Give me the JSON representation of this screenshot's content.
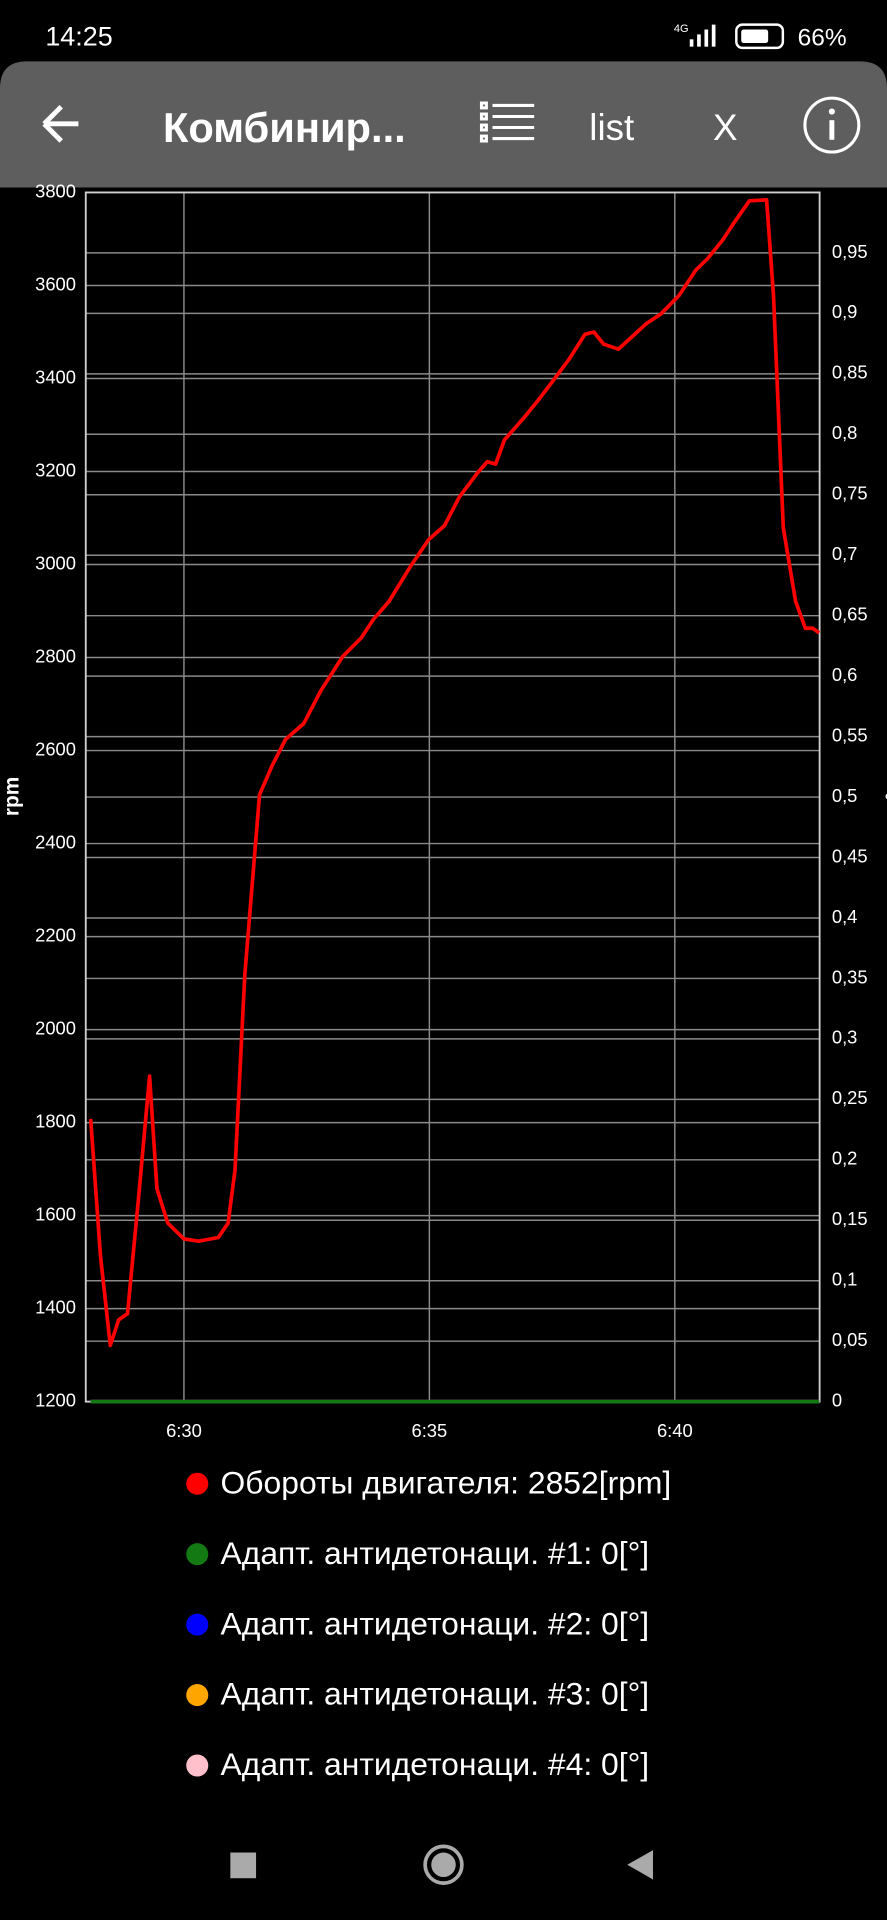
{
  "status_bar": {
    "time": "14:25",
    "network": "4G",
    "battery": "66%"
  },
  "toolbar": {
    "title": "Комбинир...",
    "list_button": "list",
    "close_button": "X"
  },
  "chart_data": {
    "type": "line",
    "y_label": "rpm",
    "y2_label": "°",
    "x": [
      388.1,
      388.3,
      388.5,
      388.67,
      388.85,
      389.07,
      389.3,
      389.45,
      389.67,
      390.0,
      390.3,
      390.7,
      390.9,
      391.04,
      391.24,
      391.54,
      391.79,
      392.07,
      392.44,
      392.79,
      393.24,
      393.61,
      393.86,
      394.18,
      394.61,
      394.98,
      395.31,
      395.61,
      395.98,
      396.18,
      396.35,
      396.53,
      396.93,
      397.23,
      397.52,
      397.85,
      398.17,
      398.35,
      398.55,
      398.85,
      399.1,
      399.42,
      399.72,
      400.09,
      400.42,
      400.67,
      400.97,
      401.22,
      401.52,
      401.87,
      402.01,
      402.21,
      402.46,
      402.66,
      402.81,
      402.94
    ],
    "xlim": [
      388,
      402.95
    ],
    "xticks": [
      {
        "value": 390,
        "label": "6:30"
      },
      {
        "value": 395,
        "label": "6:35"
      },
      {
        "value": 400,
        "label": "6:40"
      }
    ],
    "ylim": [
      1200,
      3800
    ],
    "yticks": [
      1200,
      1400,
      1600,
      1800,
      2000,
      2200,
      2400,
      2600,
      2800,
      3000,
      3200,
      3400,
      3600,
      3800
    ],
    "y2lim": [
      0,
      1
    ],
    "y2ticks": [
      0,
      {
        "value": 0.05,
        "label": "0,05"
      },
      {
        "value": 0.1,
        "label": "0,1"
      },
      {
        "value": 0.15,
        "label": "0,15"
      },
      {
        "value": 0.2,
        "label": "0,2"
      },
      {
        "value": 0.25,
        "label": "0,25"
      },
      {
        "value": 0.3,
        "label": "0,3"
      },
      {
        "value": 0.35,
        "label": "0,35"
      },
      {
        "value": 0.4,
        "label": "0,4"
      },
      {
        "value": 0.45,
        "label": "0,45"
      },
      {
        "value": 0.5,
        "label": "0,5"
      },
      {
        "value": 0.55,
        "label": "0,55"
      },
      {
        "value": 0.6,
        "label": "0,6"
      },
      {
        "value": 0.65,
        "label": "0,65"
      },
      {
        "value": 0.7,
        "label": "0,7"
      },
      {
        "value": 0.75,
        "label": "0,75"
      },
      {
        "value": 0.8,
        "label": "0,8"
      },
      {
        "value": 0.85,
        "label": "0,85"
      },
      {
        "value": 0.9,
        "label": "0,9"
      },
      {
        "value": 0.95,
        "label": "0,95"
      }
    ],
    "grid": true,
    "series": [
      {
        "name": "Обороты двигателя: 2852[rpm]",
        "color": "#ff0000",
        "values": [
          1808,
          1513,
          1321,
          1376,
          1389,
          1632,
          1900,
          1658,
          1584,
          1550,
          1545,
          1553,
          1584,
          1697,
          2118,
          2505,
          2566,
          2624,
          2658,
          2729,
          2803,
          2842,
          2882,
          2921,
          2995,
          3053,
          3084,
          3145,
          3197,
          3221,
          3216,
          3268,
          3316,
          3355,
          3395,
          3442,
          3495,
          3500,
          3474,
          3463,
          3487,
          3518,
          3539,
          3579,
          3632,
          3658,
          3697,
          3737,
          3782,
          3784,
          3579,
          3079,
          2921,
          2863,
          2863,
          2853
        ]
      },
      {
        "name": "Адапт. антидетонаци. #1: 0[°]",
        "color": "#137a13",
        "axis": "y2",
        "values": [
          0,
          0,
          0,
          0,
          0,
          0,
          0,
          0,
          0,
          0,
          0,
          0,
          0,
          0,
          0,
          0,
          0,
          0,
          0,
          0,
          0,
          0,
          0,
          0,
          0,
          0,
          0,
          0,
          0,
          0,
          0,
          0,
          0,
          0,
          0,
          0,
          0,
          0,
          0,
          0,
          0,
          0,
          0,
          0,
          0,
          0,
          0,
          0,
          0,
          0,
          0,
          0,
          0,
          0,
          0,
          0
        ]
      },
      {
        "name": "Адапт. антидетонаци. #2: 0[°]",
        "color": "#0000ff",
        "axis": "y2",
        "values": [
          0,
          0,
          0,
          0,
          0,
          0,
          0,
          0,
          0,
          0,
          0,
          0,
          0,
          0,
          0,
          0,
          0,
          0,
          0,
          0,
          0,
          0,
          0,
          0,
          0,
          0,
          0,
          0,
          0,
          0,
          0,
          0,
          0,
          0,
          0,
          0,
          0,
          0,
          0,
          0,
          0,
          0,
          0,
          0,
          0,
          0,
          0,
          0,
          0,
          0,
          0,
          0,
          0,
          0,
          0,
          0
        ]
      },
      {
        "name": "Адапт. антидетонаци. #3: 0[°]",
        "color": "#ffa500",
        "axis": "y2",
        "values": [
          0,
          0,
          0,
          0,
          0,
          0,
          0,
          0,
          0,
          0,
          0,
          0,
          0,
          0,
          0,
          0,
          0,
          0,
          0,
          0,
          0,
          0,
          0,
          0,
          0,
          0,
          0,
          0,
          0,
          0,
          0,
          0,
          0,
          0,
          0,
          0,
          0,
          0,
          0,
          0,
          0,
          0,
          0,
          0,
          0,
          0,
          0,
          0,
          0,
          0,
          0,
          0,
          0,
          0,
          0,
          0
        ]
      },
      {
        "name": "Адапт. антидетонаци. #4: 0[°]",
        "color": "#ffc0cb",
        "axis": "y2",
        "values": [
          0,
          0,
          0,
          0,
          0,
          0,
          0,
          0,
          0,
          0,
          0,
          0,
          0,
          0,
          0,
          0,
          0,
          0,
          0,
          0,
          0,
          0,
          0,
          0,
          0,
          0,
          0,
          0,
          0,
          0,
          0,
          0,
          0,
          0,
          0,
          0,
          0,
          0,
          0,
          0,
          0,
          0,
          0,
          0,
          0,
          0,
          0,
          0,
          0,
          0,
          0,
          0,
          0,
          0,
          0,
          0
        ]
      }
    ]
  }
}
